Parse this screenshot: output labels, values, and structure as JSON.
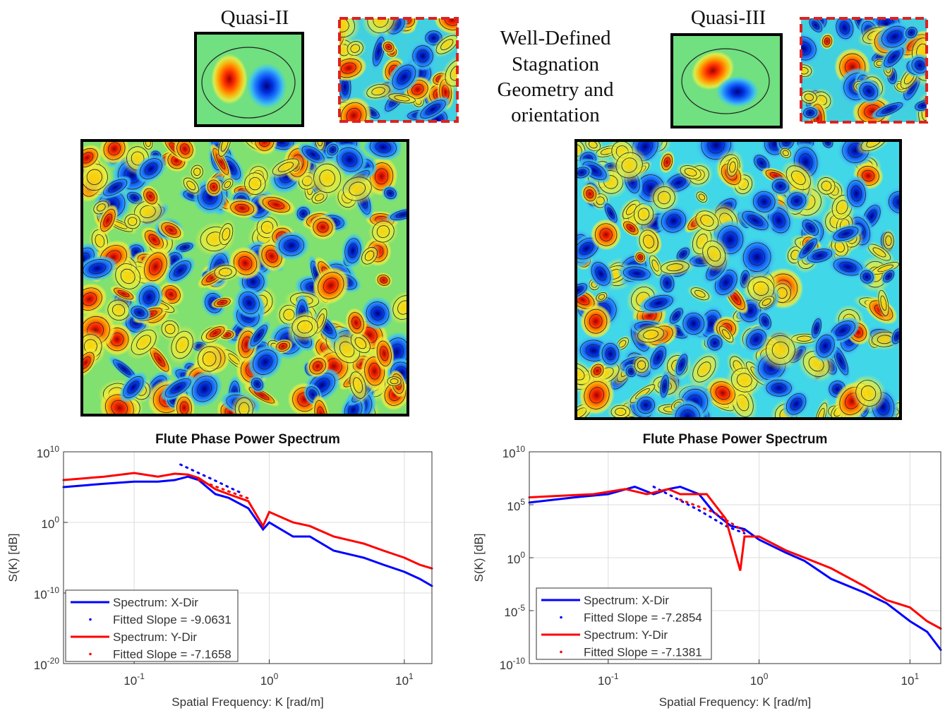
{
  "panels": [
    {
      "label": "Quasi-II"
    },
    {
      "label": "Quasi-III"
    }
  ],
  "caption": [
    "Well-Defined",
    "Stagnation",
    "Geometry and",
    "orientation"
  ],
  "chart_data": [
    {
      "type": "line",
      "title": "Flute Phase Power Spectrum",
      "xlabel": "Spatial Frequency: K [rad/m]",
      "ylabel": "S(K) [dB]",
      "xscale": "log",
      "yscale": "log",
      "grid": true,
      "legend": "lower left",
      "xlim": [
        0.03,
        16
      ],
      "ylim": [
        1e-20,
        10000000000.0
      ],
      "xticks": [
        {
          "value": 0.1,
          "label": "10^-1"
        },
        {
          "value": 1,
          "label": "10^0"
        },
        {
          "value": 10,
          "label": "10^1"
        }
      ],
      "yticks": [
        {
          "value": 10000000000.0,
          "label": "10^10"
        },
        {
          "value": 1,
          "label": "10^0"
        },
        {
          "value": 1e-10,
          "label": "10^-10"
        },
        {
          "value": 1e-20,
          "label": "10^-20"
        }
      ],
      "series": [
        {
          "name": "Spectrum: X-Dir",
          "color": "#0000ff",
          "linestyle": "solid",
          "x": [
            0.03,
            0.06,
            0.1,
            0.15,
            0.2,
            0.25,
            0.3,
            0.4,
            0.5,
            0.7,
            0.9,
            1,
            1.5,
            2,
            3,
            5,
            7,
            10,
            13,
            16
          ],
          "values": [
            100000.0,
            300000.0,
            600000.0,
            600000.0,
            1000000.0,
            3000000.0,
            1000000.0,
            10000.0,
            3000.0,
            100.0,
            0.1,
            1,
            0.01,
            0.01,
            0.0001,
            1e-05,
            1e-06,
            1e-07,
            1e-08,
            1e-09
          ]
        },
        {
          "name": "Fitted Slope = -9.0631",
          "color": "#0000ff",
          "linestyle": "dotted",
          "x": [
            0.22,
            0.3,
            0.4,
            0.5,
            0.6
          ],
          "values": [
            160000000.0,
            10000000.0,
            800000.0,
            100000.0,
            20000.0
          ]
        },
        {
          "name": "Spectrum: Y-Dir",
          "color": "#ff0000",
          "linestyle": "solid",
          "x": [
            0.03,
            0.06,
            0.1,
            0.15,
            0.2,
            0.25,
            0.3,
            0.4,
            0.5,
            0.7,
            0.9,
            1,
            1.5,
            2,
            3,
            5,
            7,
            10,
            13,
            16
          ],
          "values": [
            1000000.0,
            3000000.0,
            10000000.0,
            3000000.0,
            8000000.0,
            6000000.0,
            2000000.0,
            50000.0,
            10000.0,
            1000.0,
            0.3,
            30.0,
            1,
            0.3,
            0.01,
            0.001,
            0.0001,
            1e-05,
            1e-06,
            3e-07
          ]
        },
        {
          "name": "Fitted Slope = -7.1658",
          "color": "#ff0000",
          "linestyle": "dotted",
          "x": [
            0.3,
            0.5,
            0.7
          ],
          "values": [
            1000000.0,
            25000.0,
            2500.0
          ]
        }
      ]
    },
    {
      "type": "line",
      "title": "Flute Phase Power Spectrum",
      "xlabel": "Spatial Frequency: K [rad/m]",
      "ylabel": "S(K) [dB]",
      "xscale": "log",
      "yscale": "log",
      "grid": true,
      "legend": "lower left",
      "xlim": [
        0.03,
        16
      ],
      "ylim": [
        1e-10,
        10000000000.0
      ],
      "xticks": [
        {
          "value": 0.1,
          "label": "10^-1"
        },
        {
          "value": 1,
          "label": "10^0"
        },
        {
          "value": 10,
          "label": "10^1"
        }
      ],
      "yticks": [
        {
          "value": 10000000000.0,
          "label": "10^10"
        },
        {
          "value": 100000.0,
          "label": "10^5"
        },
        {
          "value": 1,
          "label": "10^0"
        },
        {
          "value": 1e-05,
          "label": "10^-5"
        },
        {
          "value": 1e-10,
          "label": "10^-10"
        }
      ],
      "series": [
        {
          "name": "Spectrum: X-Dir",
          "color": "#0000ff",
          "linestyle": "solid",
          "x": [
            0.03,
            0.06,
            0.1,
            0.15,
            0.2,
            0.25,
            0.3,
            0.4,
            0.5,
            0.65,
            0.8,
            1,
            1.5,
            2,
            3,
            5,
            7,
            10,
            13,
            16
          ],
          "values": [
            160000.0,
            500000.0,
            1000000.0,
            5000000.0,
            1000000.0,
            3000000.0,
            5000000.0,
            1000000.0,
            20000.0,
            1000.0,
            500.0,
            50.0,
            3,
            0.5,
            0.01,
            0.0005,
            5e-05,
            1e-06,
            1e-07,
            2e-09
          ]
        },
        {
          "name": "Fitted Slope = -7.2854",
          "color": "#0000ff",
          "linestyle": "dotted",
          "x": [
            0.2,
            0.4,
            0.6,
            0.8
          ],
          "values": [
            5000000.0,
            30000.0,
            1000.0,
            200.0
          ]
        },
        {
          "name": "Spectrum: Y-Dir",
          "color": "#ff0000",
          "linestyle": "solid",
          "x": [
            0.03,
            0.08,
            0.13,
            0.18,
            0.25,
            0.3,
            0.45,
            0.6,
            0.75,
            0.8,
            1,
            1.5,
            2,
            3,
            5,
            7,
            10,
            13,
            16
          ],
          "values": [
            500000.0,
            1000000.0,
            3000000.0,
            1000000.0,
            3000000.0,
            1000000.0,
            1000000.0,
            5000.0,
            0.06,
            100.0,
            100.0,
            5,
            1,
            0.1,
            0.002,
            0.0001,
            2e-05,
            1e-06,
            2e-07
          ]
        },
        {
          "name": "Fitted Slope = -7.1381",
          "color": "#ff0000",
          "linestyle": "dotted",
          "x": [
            0.3,
            0.5,
            0.8
          ],
          "values": [
            300000.0,
            20000.0,
            300.0
          ]
        }
      ]
    }
  ]
}
